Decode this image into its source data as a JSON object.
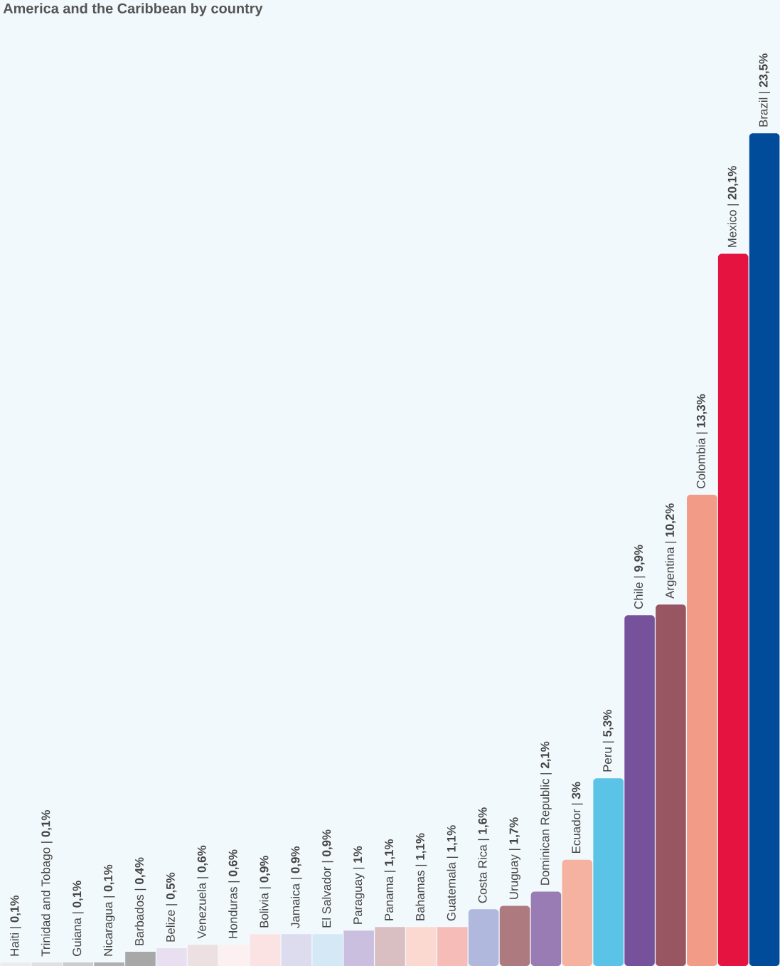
{
  "chart_data": {
    "type": "bar",
    "title": "America and the Caribbean by country",
    "categories": [
      null,
      null,
      null,
      null,
      null,
      null,
      null,
      null,
      null,
      null,
      null,
      null,
      null,
      null,
      null,
      null,
      null,
      null,
      null,
      null,
      null,
      null,
      null,
      null,
      null
    ],
    "values": [
      0.1,
      0.1,
      0.1,
      0.1,
      0.4,
      0.5,
      0.6,
      0.6,
      0.9,
      0.9,
      0.9,
      1,
      1.1,
      1.1,
      1.1,
      1.6,
      1.7,
      2.1,
      3,
      5.3,
      9.9,
      10.2,
      13.3,
      20.1,
      23.5
    ],
    "value_labels": [
      "Haiti | **0,1%**",
      "Trinidad and Tobago | **0,1%**",
      "Guiana | **0,1%**",
      "Nicaragua | **0,1%**",
      "Barbados | **0,4%**",
      "Belize | **0,5%**",
      "Venezuela | **0,6%**",
      "Honduras | **0,6%**",
      "Bolivia | **0,9%**",
      "Jamaica | **0,9%**",
      "El Salvador | **0,9%**",
      "Paraguay | **1%**",
      "Panama | **1,1%**",
      "Bahamas | **1,1%**",
      "Guatemala | **1,1%**",
      "Costa Rica | **1,6%**",
      "Uruguay | **1,7%**",
      "Dominican Republic | **2,1%**",
      "Ecuador | **3%**",
      "Peru | **5,3%**",
      "Chile | **9,9%**",
      "Argentina | **10,2%**",
      "Colombia | **13,3%**",
      "Mexico | **20,1%**",
      "Brazil | **23,5%**"
    ],
    "colors": [
      "#ebebf0",
      "#e0e0e0",
      "#cccccc",
      "#b0b0b0",
      "#a8a8a8",
      "#e8e0f0",
      "#ede0e3",
      "#fdf0f0",
      "#fbe3e3",
      "#dddcef",
      "#d4e9f5",
      "#cbbfe0",
      "#d9bec2",
      "#fbd9d0",
      "#f6bcb8",
      "#b1b8dd",
      "#ad7a80",
      "#9a7cb4",
      "#f5b2a0",
      "#5bc3e5",
      "#77529c",
      "#985663",
      "#f29b86",
      "#e4133f",
      "#004c9b"
    ]
  }
}
